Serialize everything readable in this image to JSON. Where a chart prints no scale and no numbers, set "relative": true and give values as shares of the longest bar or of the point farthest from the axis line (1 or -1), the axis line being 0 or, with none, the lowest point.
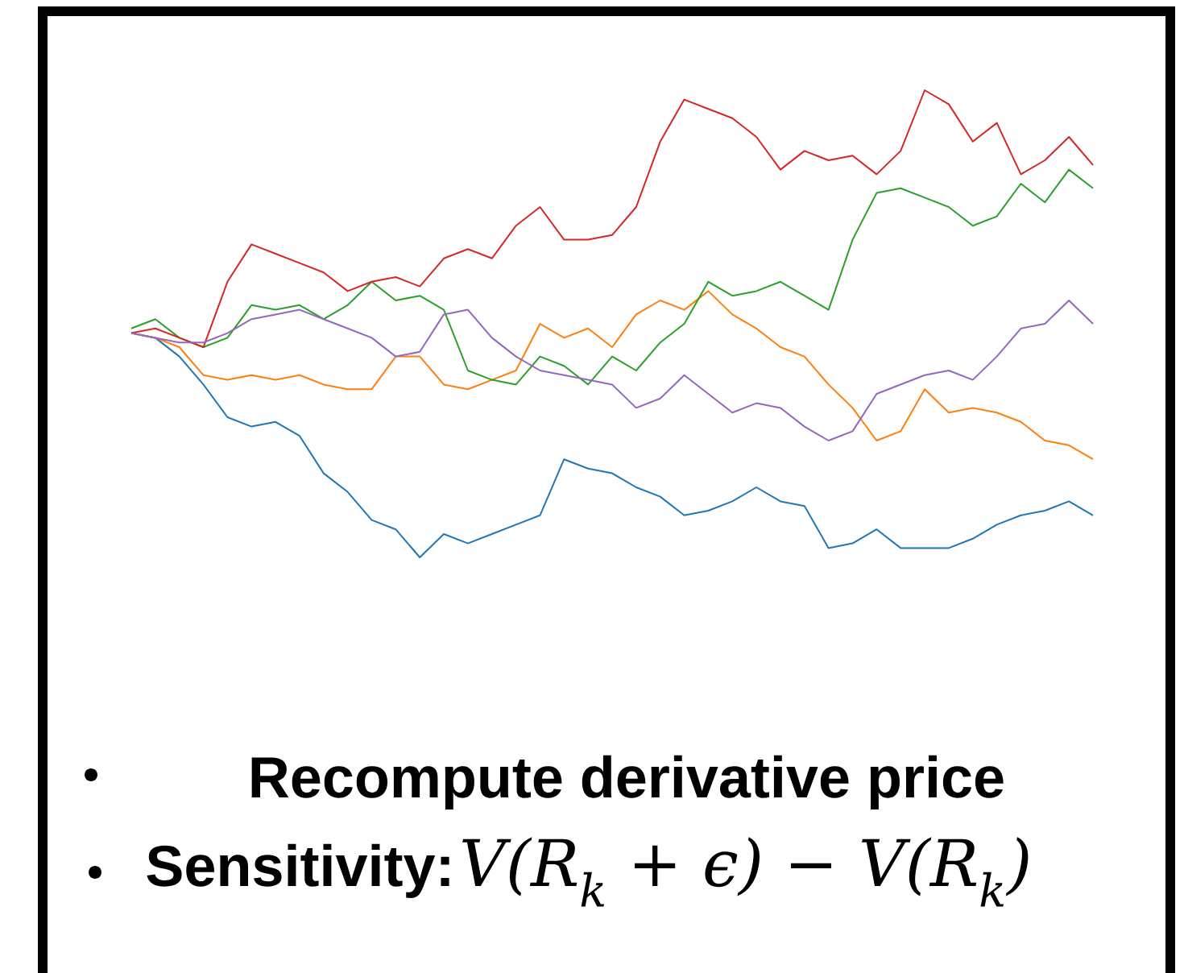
{
  "chart_data": {
    "type": "line",
    "relative": true,
    "categories": [
      null,
      null,
      null,
      null,
      null,
      null,
      null,
      null,
      null,
      null,
      null,
      null,
      null,
      null,
      null,
      null,
      null,
      null,
      null,
      null,
      null,
      null,
      null,
      null,
      null,
      null,
      null,
      null,
      null,
      null,
      null,
      null,
      null,
      null,
      null,
      null,
      null,
      null,
      null,
      null,
      null
    ],
    "series": [
      {
        "color": "#1f77b4",
        "values": [
          0.48,
          0.47,
          0.43,
          0.37,
          0.3,
          0.28,
          0.29,
          0.26,
          0.18,
          0.14,
          0.08,
          0.06,
          0.0,
          0.05,
          0.03,
          0.05,
          0.07,
          0.09,
          0.21,
          0.19,
          0.18,
          0.15,
          0.13,
          0.09,
          0.1,
          0.12,
          0.15,
          0.12,
          0.11,
          0.02,
          0.03,
          0.06,
          0.02,
          0.02,
          0.02,
          0.04,
          0.07,
          0.09,
          0.1,
          0.12,
          0.09
        ]
      },
      {
        "color": "#ff7f0e",
        "values": [
          0.48,
          0.47,
          0.45,
          0.39,
          0.38,
          0.39,
          0.38,
          0.39,
          0.37,
          0.36,
          0.36,
          0.43,
          0.43,
          0.37,
          0.36,
          0.38,
          0.4,
          0.5,
          0.47,
          0.49,
          0.45,
          0.52,
          0.55,
          0.53,
          0.57,
          0.52,
          0.49,
          0.45,
          0.43,
          0.37,
          0.32,
          0.25,
          0.27,
          0.36,
          0.31,
          0.32,
          0.31,
          0.29,
          0.25,
          0.24,
          0.21
        ]
      },
      {
        "color": "#2ca02c",
        "values": [
          0.49,
          0.51,
          0.47,
          0.45,
          0.47,
          0.54,
          0.53,
          0.54,
          0.51,
          0.54,
          0.59,
          0.55,
          0.56,
          0.53,
          0.4,
          0.38,
          0.37,
          0.43,
          0.41,
          0.37,
          0.43,
          0.4,
          0.46,
          0.5,
          0.59,
          0.56,
          0.57,
          0.59,
          0.56,
          0.53,
          0.68,
          0.78,
          0.79,
          0.77,
          0.75,
          0.71,
          0.73,
          0.8,
          0.76,
          0.83,
          0.79
        ]
      },
      {
        "color": "#d62728",
        "values": [
          0.48,
          0.49,
          0.47,
          0.45,
          0.59,
          0.67,
          0.65,
          0.63,
          0.61,
          0.57,
          0.59,
          0.6,
          0.58,
          0.64,
          0.66,
          0.64,
          0.71,
          0.75,
          0.68,
          0.68,
          0.69,
          0.75,
          0.89,
          0.98,
          0.96,
          0.94,
          0.9,
          0.83,
          0.87,
          0.85,
          0.86,
          0.82,
          0.87,
          1.0,
          0.97,
          0.89,
          0.93,
          0.82,
          0.85,
          0.9,
          0.84
        ]
      },
      {
        "color": "#9467bd",
        "values": [
          0.48,
          0.47,
          0.46,
          0.46,
          0.48,
          0.51,
          0.52,
          0.53,
          0.51,
          0.49,
          0.47,
          0.43,
          0.44,
          0.52,
          0.53,
          0.47,
          0.43,
          0.4,
          0.39,
          0.38,
          0.37,
          0.32,
          0.34,
          0.39,
          0.35,
          0.31,
          0.33,
          0.32,
          0.28,
          0.25,
          0.27,
          0.35,
          0.37,
          0.39,
          0.4,
          0.38,
          0.43,
          0.49,
          0.5,
          0.55,
          0.5
        ]
      }
    ],
    "annotations": [
      "Recompute derivative price",
      "Sensitivity:",
      "V(R$_{k}$ + ϵ) − V(R$_{k}$)"
    ]
  }
}
